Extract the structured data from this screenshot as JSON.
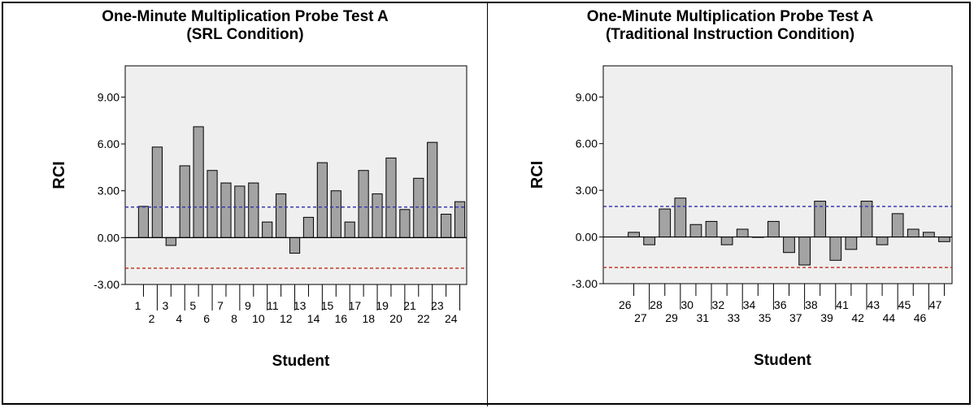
{
  "charts": [
    {
      "title_line1": "One-Minute Multiplication Probe Test A",
      "title_line2": "(SRL Condition)",
      "chart_data": {
        "type": "bar",
        "title": "One-Minute Multiplication Probe Test A (SRL Condition)",
        "xlabel": "Student",
        "ylabel": "RCI",
        "ylim": [
          -3.0,
          11.0
        ],
        "yticks": [
          "-3.00",
          "0.00",
          "3.00",
          "6.00",
          "9.00"
        ],
        "reference_lines": [
          {
            "value": 1.96,
            "style": "dashed",
            "color": "#3b3bb0"
          },
          {
            "value": -1.96,
            "style": "dashed",
            "color": "#c23a2e"
          }
        ],
        "categories": [
          "1",
          "2",
          "3",
          "4",
          "5",
          "6",
          "7",
          "8",
          "9",
          "10",
          "11",
          "12",
          "13",
          "14",
          "15",
          "16",
          "17",
          "18",
          "19",
          "20",
          "21",
          "22",
          "23",
          "24"
        ],
        "values": [
          2.0,
          5.8,
          -0.5,
          4.6,
          7.1,
          4.3,
          3.5,
          3.3,
          3.5,
          1.0,
          2.8,
          -1.0,
          1.3,
          4.8,
          3.0,
          1.0,
          4.3,
          2.8,
          5.1,
          1.8,
          3.8,
          6.1,
          1.5,
          2.3
        ],
        "grid": false,
        "bar_color": "#a3a3a3",
        "plot_background": "#efefef"
      }
    },
    {
      "title_line1": "One-Minute Multiplication Probe Test A",
      "title_line2": "(Traditional Instruction Condition)",
      "chart_data": {
        "type": "bar",
        "title": "One-Minute Multiplication Probe Test A (Traditional Instruction Condition)",
        "xlabel": "Student",
        "ylabel": "RCI",
        "ylim": [
          -3.0,
          11.0
        ],
        "yticks": [
          "-3.00",
          "0.00",
          "3.00",
          "6.00",
          "9.00"
        ],
        "reference_lines": [
          {
            "value": 1.96,
            "style": "dashed",
            "color": "#3b3bb0"
          },
          {
            "value": -1.96,
            "style": "dashed",
            "color": "#c23a2e"
          }
        ],
        "categories": [
          "26",
          "27",
          "28",
          "29",
          "30",
          "31",
          "32",
          "33",
          "34",
          "35",
          "36",
          "37",
          "38",
          "39",
          "41",
          "42",
          "43",
          "44",
          "45",
          "46",
          "47"
        ],
        "values": [
          0.3,
          -0.5,
          1.8,
          2.5,
          0.8,
          1.0,
          -0.5,
          0.5,
          0.0,
          1.0,
          -1.0,
          -1.8,
          2.3,
          -1.5,
          -0.8,
          2.3,
          -0.5,
          1.5,
          0.5,
          0.3,
          -0.3
        ],
        "grid": false,
        "bar_color": "#a3a3a3",
        "plot_background": "#efefef"
      }
    }
  ]
}
